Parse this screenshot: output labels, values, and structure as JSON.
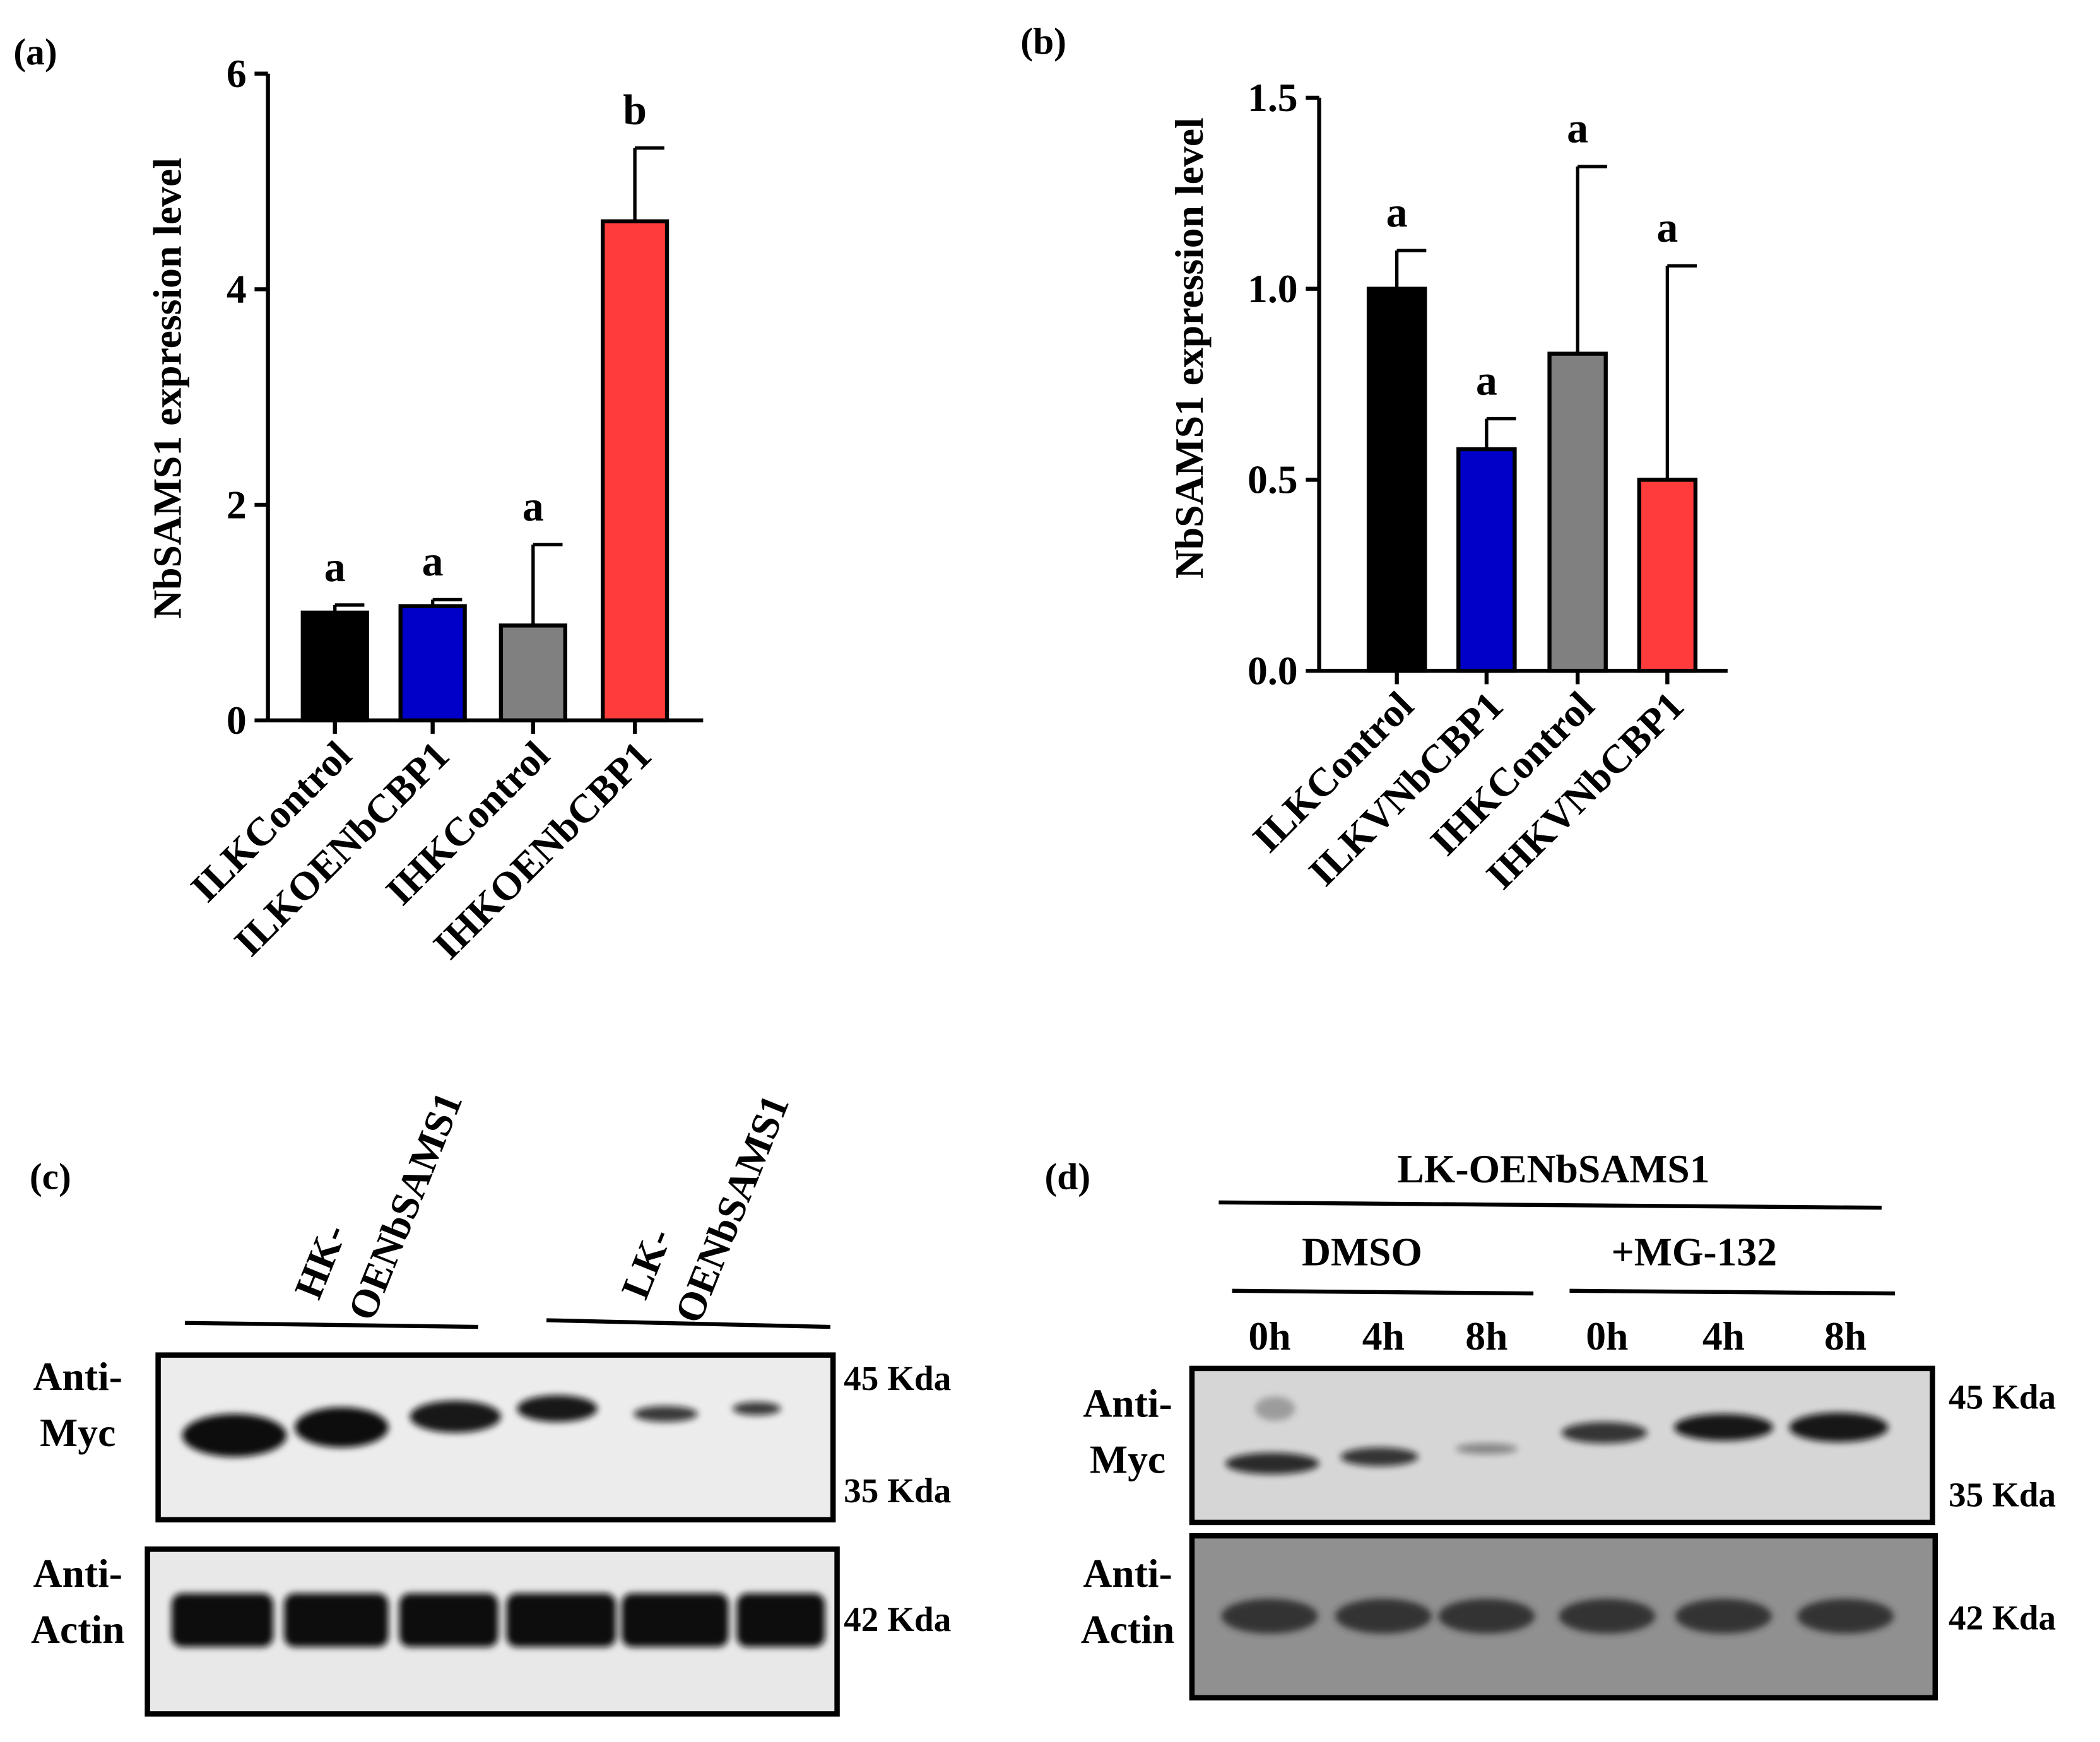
{
  "chart_data": [
    {
      "type": "bar",
      "panel": "(a)",
      "ylabel": "NbSAMS1 expression level",
      "categories": [
        "ILKControl",
        "ILKOENbCBP1",
        "IHKControl",
        "IHKOENbCBP1"
      ],
      "values": [
        1.0,
        1.06,
        0.88,
        4.63
      ],
      "errors": [
        0.07,
        0.06,
        0.75,
        0.68
      ],
      "letters": [
        "a",
        "a",
        "a",
        "b"
      ],
      "colors": [
        "#000000",
        "#0000c8",
        "#808080",
        "#ff3b3b"
      ],
      "ylim": [
        0,
        6
      ],
      "yticks": [
        0,
        2,
        4,
        6
      ]
    },
    {
      "type": "bar",
      "panel": "(b)",
      "ylabel": "NbSAMS1 expression level",
      "categories": [
        "ILKControl",
        "ILKVNbCBP1",
        "IHKControl",
        "IHKVNbCBP1"
      ],
      "values": [
        1.0,
        0.58,
        0.83,
        0.5
      ],
      "errors": [
        0.1,
        0.08,
        0.49,
        0.56
      ],
      "letters": [
        "a",
        "a",
        "a",
        "a"
      ],
      "colors": [
        "#000000",
        "#0000c8",
        "#808080",
        "#ff3b3b"
      ],
      "ylim": [
        0,
        1.5
      ],
      "yticks": [
        {
          "value": 0,
          "label": "0.0"
        },
        {
          "value": 0.5,
          "label": "0.5"
        },
        {
          "value": 1,
          "label": "1.0"
        },
        {
          "value": 1.5,
          "label": "1.5"
        }
      ]
    }
  ],
  "blots": [
    {
      "panel": "(c)",
      "groups": [
        [
          "HK-",
          "OENbSAMS1"
        ],
        [
          "LK-",
          "OENbSAMS1"
        ]
      ],
      "rows": [
        {
          "antibody": [
            "Anti-",
            "Myc"
          ],
          "markers": [
            "45 Kda",
            "35 Kda"
          ]
        },
        {
          "antibody": [
            "Anti-",
            "Actin"
          ],
          "markers": [
            "42 Kda"
          ]
        }
      ]
    },
    {
      "panel": "(d)",
      "construct": "LK-OENbSAMS1",
      "treatments": [
        "DMSO",
        "+MG-132"
      ],
      "times": [
        "0h",
        "4h",
        "8h",
        "0h",
        "4h",
        "8h"
      ],
      "rows": [
        {
          "antibody": [
            "Anti-",
            "Myc"
          ],
          "markers": [
            "45 Kda",
            "35 Kda"
          ]
        },
        {
          "antibody": [
            "Anti-",
            "Actin"
          ],
          "markers": [
            "42 Kda"
          ]
        }
      ]
    }
  ]
}
